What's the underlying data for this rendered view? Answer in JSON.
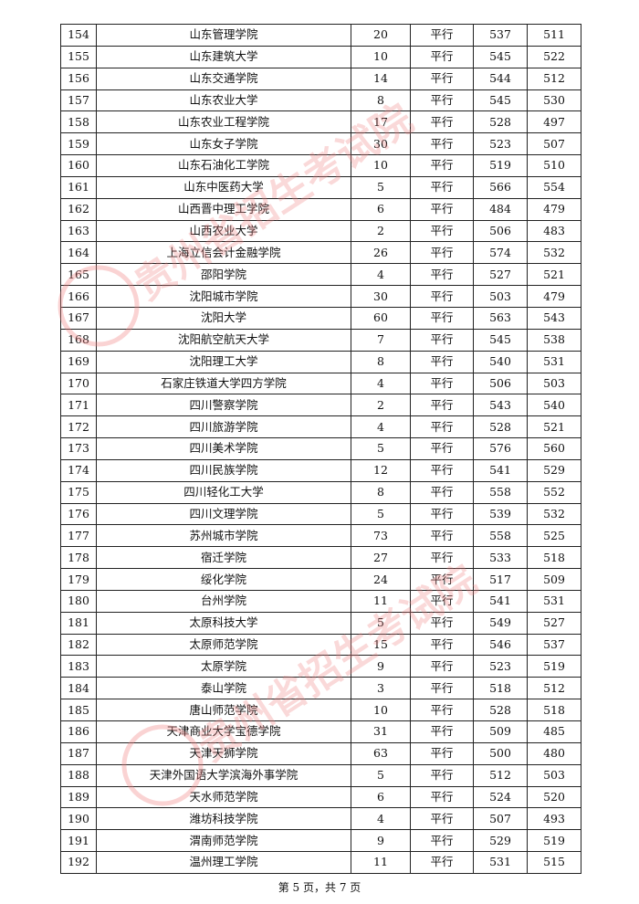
{
  "table": {
    "rows": [
      [
        "154",
        "山东管理学院",
        "20",
        "平行",
        "537",
        "511"
      ],
      [
        "155",
        "山东建筑大学",
        "10",
        "平行",
        "545",
        "522"
      ],
      [
        "156",
        "山东交通学院",
        "14",
        "平行",
        "544",
        "512"
      ],
      [
        "157",
        "山东农业大学",
        "8",
        "平行",
        "545",
        "530"
      ],
      [
        "158",
        "山东农业工程学院",
        "17",
        "平行",
        "528",
        "497"
      ],
      [
        "159",
        "山东女子学院",
        "30",
        "平行",
        "523",
        "507"
      ],
      [
        "160",
        "山东石油化工学院",
        "10",
        "平行",
        "519",
        "510"
      ],
      [
        "161",
        "山东中医药大学",
        "5",
        "平行",
        "566",
        "554"
      ],
      [
        "162",
        "山西晋中理工学院",
        "6",
        "平行",
        "484",
        "479"
      ],
      [
        "163",
        "山西农业大学",
        "2",
        "平行",
        "506",
        "483"
      ],
      [
        "164",
        "上海立信会计金融学院",
        "26",
        "平行",
        "574",
        "532"
      ],
      [
        "165",
        "邵阳学院",
        "4",
        "平行",
        "527",
        "521"
      ],
      [
        "166",
        "沈阳城市学院",
        "30",
        "平行",
        "503",
        "479"
      ],
      [
        "167",
        "沈阳大学",
        "60",
        "平行",
        "563",
        "543"
      ],
      [
        "168",
        "沈阳航空航天大学",
        "7",
        "平行",
        "545",
        "538"
      ],
      [
        "169",
        "沈阳理工大学",
        "8",
        "平行",
        "540",
        "531"
      ],
      [
        "170",
        "石家庄铁道大学四方学院",
        "4",
        "平行",
        "506",
        "503"
      ],
      [
        "171",
        "四川警察学院",
        "2",
        "平行",
        "543",
        "540"
      ],
      [
        "172",
        "四川旅游学院",
        "4",
        "平行",
        "528",
        "521"
      ],
      [
        "173",
        "四川美术学院",
        "5",
        "平行",
        "576",
        "560"
      ],
      [
        "174",
        "四川民族学院",
        "12",
        "平行",
        "541",
        "529"
      ],
      [
        "175",
        "四川轻化工大学",
        "8",
        "平行",
        "558",
        "552"
      ],
      [
        "176",
        "四川文理学院",
        "5",
        "平行",
        "539",
        "532"
      ],
      [
        "177",
        "苏州城市学院",
        "73",
        "平行",
        "558",
        "525"
      ],
      [
        "178",
        "宿迁学院",
        "27",
        "平行",
        "533",
        "518"
      ],
      [
        "179",
        "绥化学院",
        "24",
        "平行",
        "517",
        "509"
      ],
      [
        "180",
        "台州学院",
        "11",
        "平行",
        "541",
        "531"
      ],
      [
        "181",
        "太原科技大学",
        "5",
        "平行",
        "549",
        "527"
      ],
      [
        "182",
        "太原师范学院",
        "15",
        "平行",
        "546",
        "537"
      ],
      [
        "183",
        "太原学院",
        "9",
        "平行",
        "523",
        "519"
      ],
      [
        "184",
        "泰山学院",
        "3",
        "平行",
        "518",
        "512"
      ],
      [
        "185",
        "唐山师范学院",
        "10",
        "平行",
        "528",
        "518"
      ],
      [
        "186",
        "天津商业大学宝德学院",
        "31",
        "平行",
        "509",
        "485"
      ],
      [
        "187",
        "天津天狮学院",
        "63",
        "平行",
        "500",
        "480"
      ],
      [
        "188",
        "天津外国语大学滨海外事学院",
        "5",
        "平行",
        "512",
        "503"
      ],
      [
        "189",
        "天水师范学院",
        "6",
        "平行",
        "524",
        "520"
      ],
      [
        "190",
        "潍坊科技学院",
        "4",
        "平行",
        "507",
        "493"
      ],
      [
        "191",
        "渭南师范学院",
        "9",
        "平行",
        "529",
        "519"
      ],
      [
        "192",
        "温州理工学院",
        "11",
        "平行",
        "531",
        "515"
      ]
    ]
  },
  "footer": {
    "page_label": "第 5 页，共 7 页"
  },
  "watermark": {
    "text": "贵州省招生考试院",
    "color": "#f08080"
  }
}
